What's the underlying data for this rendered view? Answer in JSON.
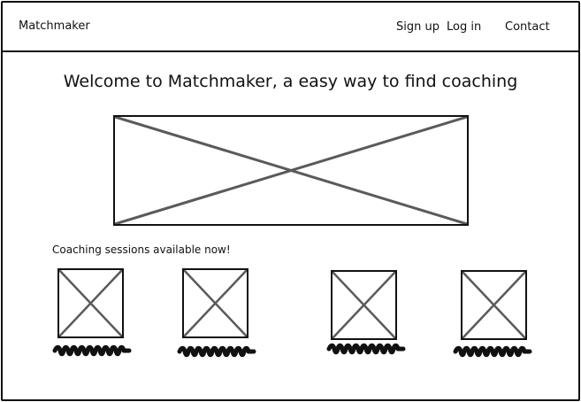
{
  "app": {
    "brand": "Matchmaker"
  },
  "nav": {
    "signup": "Sign up",
    "login": "Log in",
    "contact": "Contact"
  },
  "main": {
    "headline": "Welcome to Matchmaker, a easy way to find coaching",
    "sessions_title": "Coaching sessions available now!",
    "sessions": [
      {
        "thumbnail": "image-placeholder-icon",
        "caption": "scribble-text"
      },
      {
        "thumbnail": "image-placeholder-icon",
        "caption": "scribble-text"
      },
      {
        "thumbnail": "image-placeholder-icon",
        "caption": "scribble-text"
      },
      {
        "thumbnail": "image-placeholder-icon",
        "caption": "scribble-text"
      }
    ]
  },
  "colors": {
    "outline": "#111111",
    "placeholder_cross": "#5a5a5a",
    "background": "#ffffff"
  }
}
